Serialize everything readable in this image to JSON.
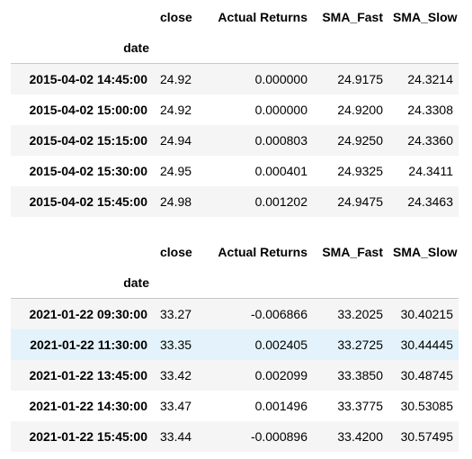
{
  "tables": [
    {
      "columns": [
        "close",
        "Actual Returns",
        "SMA_Fast",
        "SMA_Slow"
      ],
      "index_name": "date",
      "rows": [
        {
          "date": "2015-04-02 14:45:00",
          "close": "24.92",
          "ret": "0.000000",
          "fast": "24.9175",
          "slow": "24.3214"
        },
        {
          "date": "2015-04-02 15:00:00",
          "close": "24.92",
          "ret": "0.000000",
          "fast": "24.9200",
          "slow": "24.3308"
        },
        {
          "date": "2015-04-02 15:15:00",
          "close": "24.94",
          "ret": "0.000803",
          "fast": "24.9250",
          "slow": "24.3360"
        },
        {
          "date": "2015-04-02 15:30:00",
          "close": "24.95",
          "ret": "0.000401",
          "fast": "24.9325",
          "slow": "24.3411"
        },
        {
          "date": "2015-04-02 15:45:00",
          "close": "24.98",
          "ret": "0.001202",
          "fast": "24.9475",
          "slow": "24.3463"
        }
      ]
    },
    {
      "columns": [
        "close",
        "Actual Returns",
        "SMA_Fast",
        "SMA_Slow"
      ],
      "index_name": "date",
      "rows": [
        {
          "date": "2021-01-22 09:30:00",
          "close": "33.27",
          "ret": "-0.006866",
          "fast": "33.2025",
          "slow": "30.40215"
        },
        {
          "date": "2021-01-22 11:30:00",
          "close": "33.35",
          "ret": "0.002405",
          "fast": "33.2725",
          "slow": "30.44445"
        },
        {
          "date": "2021-01-22 13:45:00",
          "close": "33.42",
          "ret": "0.002099",
          "fast": "33.3850",
          "slow": "30.48745"
        },
        {
          "date": "2021-01-22 14:30:00",
          "close": "33.47",
          "ret": "0.001496",
          "fast": "33.3775",
          "slow": "30.53085"
        },
        {
          "date": "2021-01-22 15:45:00",
          "close": "33.44",
          "ret": "-0.000896",
          "fast": "33.4200",
          "slow": "30.57495"
        }
      ]
    }
  ]
}
